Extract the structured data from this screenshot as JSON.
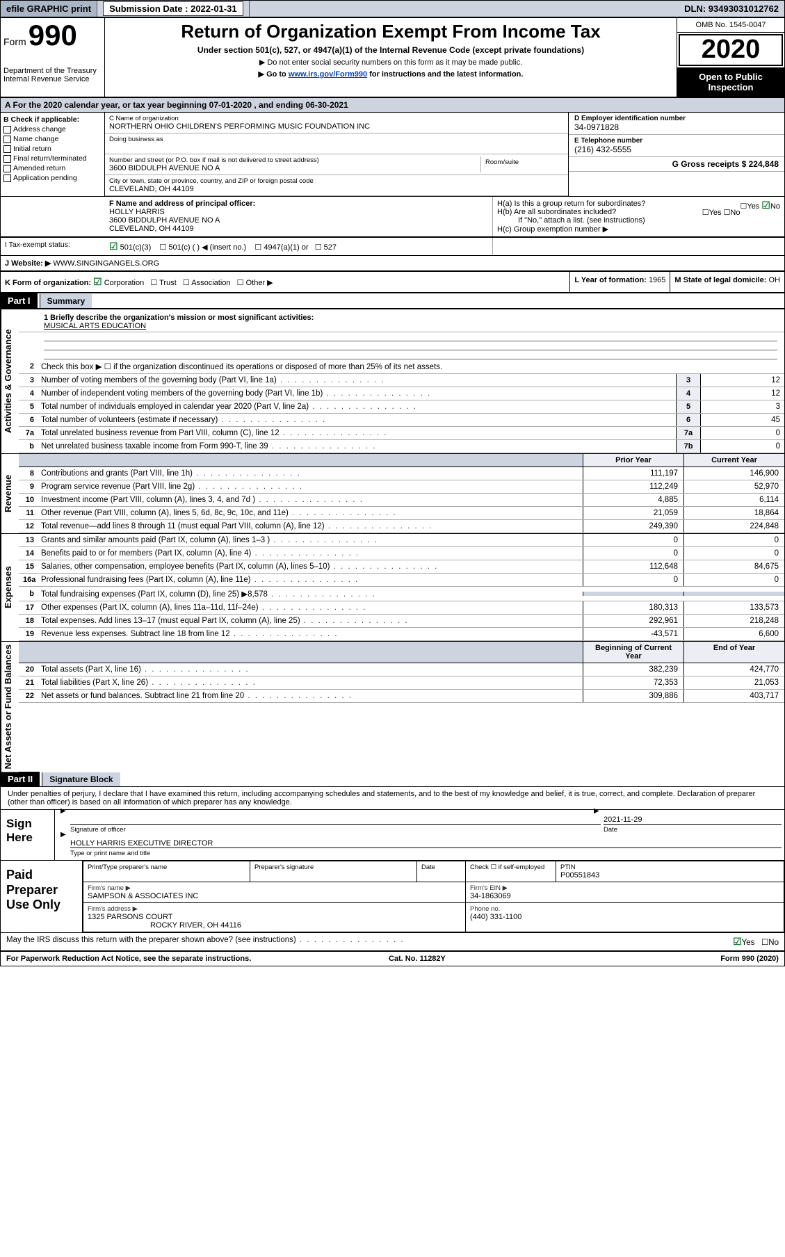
{
  "topbar": {
    "efile": "efile GRAPHIC print",
    "sub_lbl": "Submission Date : 2022-01-31",
    "dln": "DLN: 93493031012762"
  },
  "header": {
    "form_prefix": "Form",
    "form_no": "990",
    "dept": "Department of the Treasury\nInternal Revenue Service",
    "title": "Return of Organization Exempt From Income Tax",
    "subtitle": "Under section 501(c), 527, or 4947(a)(1) of the Internal Revenue Code (except private foundations)",
    "hint1": "▶ Do not enter social security numbers on this form as it may be made public.",
    "hint2_pre": "▶ Go to ",
    "hint2_link": "www.irs.gov/Form990",
    "hint2_post": " for instructions and the latest information.",
    "omb": "OMB No. 1545-0047",
    "year": "2020",
    "pub": "Open to Public Inspection"
  },
  "period": "A For the 2020 calendar year, or tax year beginning 07-01-2020    , and ending 06-30-2021",
  "checkif": {
    "label": "B Check if applicable:",
    "items": [
      "Address change",
      "Name change",
      "Initial return",
      "Final return/terminated",
      "Amended return",
      "Application pending"
    ]
  },
  "org": {
    "name_lbl": "C Name of organization",
    "name": "NORTHERN OHIO CHILDREN'S PERFORMING MUSIC FOUNDATION INC",
    "dba_lbl": "Doing business as",
    "street_lbl": "Number and street (or P.O. box if mail is not delivered to street address)",
    "street": "3600 BIDDULPH AVENUE NO A",
    "suite_lbl": "Room/suite",
    "city_lbl": "City or town, state or province, country, and ZIP or foreign postal code",
    "city": "CLEVELAND, OH  44109"
  },
  "right": {
    "ein_lbl": "D Employer identification number",
    "ein": "34-0971828",
    "tel_lbl": "E Telephone number",
    "tel": "(216) 432-5555",
    "gross_lbl": "G Gross receipts $ 224,848"
  },
  "officer": {
    "lbl": "F  Name and address of principal officer:",
    "name": "HOLLY HARRIS",
    "addr1": "3600 BIDDULPH AVENUE NO A",
    "addr2": "CLEVELAND, OH  44109"
  },
  "groupret": {
    "ha": "H(a)  Is this a group return for subordinates?",
    "hb": "H(b)  Are all subordinates included?",
    "hb_note": "If \"No,\" attach a list. (see instructions)",
    "hc": "H(c)  Group exemption number ▶"
  },
  "tax_status": {
    "lbl": "I  Tax-exempt status:",
    "opts": [
      "501(c)(3)",
      "501(c) (  ) ◀ (insert no.)",
      "4947(a)(1) or",
      "527"
    ]
  },
  "website": {
    "lbl": "J  Website: ▶",
    "val": "  WWW.SINGINGANGELS.ORG"
  },
  "formorg": {
    "k": "K Form of organization:",
    "opts": [
      "Corporation",
      "Trust",
      "Association",
      "Other ▶"
    ],
    "l_lbl": "L Year of formation: ",
    "l_val": "1965",
    "m_lbl": "M State of legal domicile: ",
    "m_val": "OH"
  },
  "part1": {
    "hdr": "Part I",
    "sub": "Summary"
  },
  "mission": {
    "prompt": "1  Briefly describe the organization's mission or most significant activities:",
    "text": "MUSICAL ARTS EDUCATION"
  },
  "gov_lines": [
    {
      "n": "2",
      "t": "Check this box ▶ ☐  if the organization discontinued its operations or disposed of more than 25% of its net assets.",
      "box": "",
      "v": ""
    },
    {
      "n": "3",
      "t": "Number of voting members of the governing body (Part VI, line 1a)",
      "box": "3",
      "v": "12"
    },
    {
      "n": "4",
      "t": "Number of independent voting members of the governing body (Part VI, line 1b)",
      "box": "4",
      "v": "12"
    },
    {
      "n": "5",
      "t": "Total number of individuals employed in calendar year 2020 (Part V, line 2a)",
      "box": "5",
      "v": "3"
    },
    {
      "n": "6",
      "t": "Total number of volunteers (estimate if necessary)",
      "box": "6",
      "v": "45"
    },
    {
      "n": "7a",
      "t": "Total unrelated business revenue from Part VIII, column (C), line 12",
      "box": "7a",
      "v": "0"
    },
    {
      "n": "b",
      "t": "Net unrelated business taxable income from Form 990-T, line 39",
      "box": "7b",
      "v": "0"
    }
  ],
  "rev_hdr": {
    "py": "Prior Year",
    "cy": "Current Year"
  },
  "rev_lines": [
    {
      "n": "8",
      "t": "Contributions and grants (Part VIII, line 1h)",
      "py": "111,197",
      "cy": "146,900"
    },
    {
      "n": "9",
      "t": "Program service revenue (Part VIII, line 2g)",
      "py": "112,249",
      "cy": "52,970"
    },
    {
      "n": "10",
      "t": "Investment income (Part VIII, column (A), lines 3, 4, and 7d )",
      "py": "4,885",
      "cy": "6,114"
    },
    {
      "n": "11",
      "t": "Other revenue (Part VIII, column (A), lines 5, 6d, 8c, 9c, 10c, and 11e)",
      "py": "21,059",
      "cy": "18,864"
    },
    {
      "n": "12",
      "t": "Total revenue—add lines 8 through 11 (must equal Part VIII, column (A), line 12)",
      "py": "249,390",
      "cy": "224,848"
    }
  ],
  "exp_lines": [
    {
      "n": "13",
      "t": "Grants and similar amounts paid (Part IX, column (A), lines 1–3 )",
      "py": "0",
      "cy": "0"
    },
    {
      "n": "14",
      "t": "Benefits paid to or for members (Part IX, column (A), line 4)",
      "py": "0",
      "cy": "0"
    },
    {
      "n": "15",
      "t": "Salaries, other compensation, employee benefits (Part IX, column (A), lines 5–10)",
      "py": "112,648",
      "cy": "84,675"
    },
    {
      "n": "16a",
      "t": "Professional fundraising fees (Part IX, column (A), line 11e)",
      "py": "0",
      "cy": "0"
    },
    {
      "n": "b",
      "t": "Total fundraising expenses (Part IX, column (D), line 25) ▶8,578",
      "py": "",
      "cy": "",
      "shade": true
    },
    {
      "n": "17",
      "t": "Other expenses (Part IX, column (A), lines 11a–11d, 11f–24e)",
      "py": "180,313",
      "cy": "133,573"
    },
    {
      "n": "18",
      "t": "Total expenses. Add lines 13–17 (must equal Part IX, column (A), line 25)",
      "py": "292,961",
      "cy": "218,248"
    },
    {
      "n": "19",
      "t": "Revenue less expenses. Subtract line 18 from line 12",
      "py": "-43,571",
      "cy": "6,600"
    }
  ],
  "na_hdr": {
    "py": "Beginning of Current Year",
    "cy": "End of Year"
  },
  "na_lines": [
    {
      "n": "20",
      "t": "Total assets (Part X, line 16)",
      "py": "382,239",
      "cy": "424,770"
    },
    {
      "n": "21",
      "t": "Total liabilities (Part X, line 26)",
      "py": "72,353",
      "cy": "21,053"
    },
    {
      "n": "22",
      "t": "Net assets or fund balances. Subtract line 21 from line 20",
      "py": "309,886",
      "cy": "403,717"
    }
  ],
  "part2": {
    "hdr": "Part II",
    "sub": "Signature Block",
    "decl": "Under penalties of perjury, I declare that I have examined this return, including accompanying schedules and statements, and to the best of my knowledge and belief, it is true, correct, and complete. Declaration of preparer (other than officer) is based on all information of which preparer has any knowledge."
  },
  "sign": {
    "lbl": "Sign Here",
    "sig_lbl": "Signature of officer",
    "date_lbl": "Date",
    "date": "2021-11-29",
    "name": "HOLLY HARRIS  EXECUTIVE DIRECTOR",
    "name_lbl": "Type or print name and title"
  },
  "prep": {
    "lbl": "Paid Preparer Use Only",
    "h1": "Print/Type preparer's name",
    "h2": "Preparer's signature",
    "h3": "Date",
    "h4_a": "Check ☐ if self-employed",
    "h4_b": "PTIN",
    "ptin": "P00551843",
    "firm_lbl": "Firm's name    ▶",
    "firm": "SAMPSON & ASSOCIATES INC",
    "ein_lbl": "Firm's EIN ▶",
    "ein": "34-1863069",
    "addr_lbl": "Firm's address ▶",
    "addr1": "1325 PARSONS COURT",
    "addr2": "ROCKY RIVER, OH  44116",
    "phone_lbl": "Phone no.",
    "phone": "(440) 331-1100"
  },
  "discuss": {
    "q": "May the IRS discuss this return with the preparer shown above? (see instructions)",
    "yes": "Yes",
    "no": "No"
  },
  "footer": {
    "left": "For Paperwork Reduction Act Notice, see the separate instructions.",
    "mid": "Cat. No. 11282Y",
    "right": "Form 990 (2020)"
  },
  "labels": {
    "activities": "Activities & Governance",
    "revenue": "Revenue",
    "expenses": "Expenses",
    "netassets": "Net Assets or Fund Balances"
  }
}
